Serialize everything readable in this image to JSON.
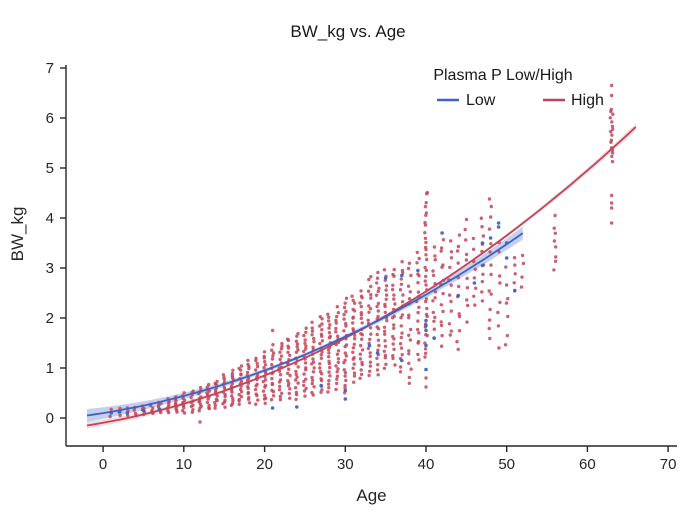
{
  "chart_data": {
    "type": "scatter",
    "title": "BW_kg vs. Age",
    "xlabel": "Age",
    "ylabel": "BW_kg",
    "xlim": [
      -4.6,
      71.1
    ],
    "ylim": [
      -0.56,
      7.06
    ],
    "xticks": [
      0,
      10,
      20,
      30,
      40,
      50,
      60,
      70
    ],
    "yticks": [
      0,
      1,
      2,
      3,
      4,
      5,
      6,
      7
    ],
    "grid": false,
    "background_color": "#ffffff",
    "axis_color": "#262626",
    "legend": {
      "title": "Plasma P Low/High",
      "orientation": "horizontal",
      "position": "upper-center-right-inside",
      "entries": [
        {
          "label": "Low",
          "color": "#3e63c4"
        },
        {
          "label": "High",
          "color": "#c2445a"
        }
      ]
    },
    "high_scatter": {
      "label": "High",
      "color": "#c2445a",
      "marker_radius": 1.7,
      "strips_format": [
        "age",
        "bw_min",
        "bw_max",
        "count"
      ],
      "strips": [
        [
          1,
          0.05,
          0.16,
          2
        ],
        [
          2,
          0.05,
          0.18,
          3
        ],
        [
          3,
          0.06,
          0.2,
          3
        ],
        [
          4,
          0.05,
          0.22,
          4
        ],
        [
          5,
          0.08,
          0.25,
          5
        ],
        [
          6,
          0.08,
          0.28,
          6
        ],
        [
          7,
          0.1,
          0.32,
          7
        ],
        [
          8,
          0.1,
          0.38,
          8
        ],
        [
          9,
          0.12,
          0.42,
          9
        ],
        [
          10,
          0.1,
          0.5,
          10
        ],
        [
          11,
          0.12,
          0.55,
          10
        ],
        [
          12,
          0.15,
          0.6,
          12
        ],
        [
          13,
          0.18,
          0.68,
          12
        ],
        [
          14,
          0.2,
          0.75,
          13
        ],
        [
          15,
          0.22,
          0.85,
          14
        ],
        [
          16,
          0.25,
          0.95,
          15
        ],
        [
          17,
          0.28,
          1.05,
          16
        ],
        [
          18,
          0.3,
          1.15,
          16
        ],
        [
          19,
          0.3,
          1.2,
          15
        ],
        [
          20,
          0.3,
          1.3,
          18
        ],
        [
          21,
          0.35,
          1.45,
          16
        ],
        [
          22,
          0.38,
          1.5,
          18
        ],
        [
          23,
          0.42,
          1.6,
          18
        ],
        [
          24,
          0.4,
          1.7,
          20
        ],
        [
          25,
          0.45,
          1.8,
          20
        ],
        [
          26,
          0.45,
          1.9,
          20
        ],
        [
          27,
          0.5,
          2.05,
          22
        ],
        [
          28,
          0.55,
          2.1,
          22
        ],
        [
          29,
          0.6,
          2.2,
          22
        ],
        [
          30,
          0.5,
          2.4,
          24
        ],
        [
          31,
          0.75,
          2.45,
          22
        ],
        [
          32,
          0.8,
          2.55,
          22
        ],
        [
          33,
          0.85,
          2.85,
          22
        ],
        [
          34,
          0.9,
          2.9,
          22
        ],
        [
          35,
          1.0,
          2.95,
          22
        ],
        [
          36,
          1.05,
          3.0,
          20
        ],
        [
          37,
          0.95,
          3.1,
          20
        ],
        [
          38,
          0.65,
          3.1,
          18
        ],
        [
          39,
          1.2,
          3.3,
          18
        ],
        [
          40,
          1.2,
          4.55,
          34
        ],
        [
          41,
          1.6,
          3.4,
          14
        ],
        [
          42,
          1.5,
          3.6,
          14
        ],
        [
          43,
          1.6,
          3.5,
          12
        ],
        [
          44,
          1.3,
          3.7,
          12
        ],
        [
          45,
          2.0,
          3.95,
          10
        ],
        [
          46,
          2.2,
          3.6,
          8
        ],
        [
          47,
          2.3,
          4.05,
          10
        ],
        [
          48,
          1.5,
          4.4,
          14
        ],
        [
          49,
          1.5,
          3.5,
          8
        ],
        [
          50,
          1.4,
          3.0,
          7
        ],
        [
          51,
          2.5,
          3.2,
          5
        ],
        [
          52,
          2.6,
          3.3,
          4
        ],
        [
          56,
          3.0,
          3.8,
          7
        ],
        [
          63,
          5.15,
          6.2,
          16
        ]
      ],
      "outliers": [
        [
          12,
          -0.08
        ],
        [
          21,
          1.75
        ],
        [
          40,
          0.62
        ],
        [
          40,
          0.8
        ],
        [
          56,
          4.05
        ],
        [
          63,
          6.65
        ],
        [
          63,
          6.45
        ],
        [
          63,
          4.45
        ],
        [
          63,
          4.3
        ],
        [
          63,
          4.2
        ],
        [
          63,
          3.9
        ]
      ]
    },
    "low_scatter": {
      "label": "Low",
      "color": "#3e63c4",
      "marker_radius": 1.8,
      "points": [
        [
          1,
          0.1
        ],
        [
          2,
          0.12
        ],
        [
          3,
          0.1
        ],
        [
          5,
          0.15
        ],
        [
          7,
          0.18
        ],
        [
          21,
          0.2
        ],
        [
          24,
          0.22
        ],
        [
          27,
          0.65
        ],
        [
          30,
          0.55
        ],
        [
          30,
          0.38
        ],
        [
          33,
          1.45
        ],
        [
          34,
          1.3
        ],
        [
          35,
          2.8
        ],
        [
          37,
          2.85
        ],
        [
          37,
          1.15
        ],
        [
          39,
          2.95
        ],
        [
          40,
          1.95
        ],
        [
          40,
          1.85
        ],
        [
          40,
          1.75
        ],
        [
          40,
          1.45
        ],
        [
          40,
          0.97
        ],
        [
          41,
          1.6
        ],
        [
          42,
          3.7
        ],
        [
          44,
          2.45
        ],
        [
          46,
          2.7
        ],
        [
          47,
          3.5
        ],
        [
          47,
          3.05
        ],
        [
          48,
          3.6
        ],
        [
          49,
          3.9
        ],
        [
          49,
          3.82
        ],
        [
          50,
          3.5
        ],
        [
          50,
          3.2
        ],
        [
          51,
          2.55
        ]
      ]
    },
    "trend_lines": [
      {
        "name": "Low",
        "color": "#3e63c4",
        "fit": "quadratic",
        "coeffs": [
          0.000833,
          0.0259,
          0.0985
        ],
        "x_range": [
          -2,
          52.5
        ],
        "band": {
          "base": 0.035,
          "amp": 0.095,
          "center": 25,
          "span": 27,
          "opacity": 0.3
        }
      },
      {
        "name": "High",
        "color": "#c2445a",
        "fit": "quadratic",
        "coeffs": [
          0.000921,
          0.02887,
          -0.0959
        ],
        "x_range": [
          -2,
          66.5
        ],
        "band": {
          "base": 0.02,
          "amp": 0.05,
          "center": 32,
          "span": 34.5,
          "opacity": 0.18
        }
      }
    ]
  }
}
